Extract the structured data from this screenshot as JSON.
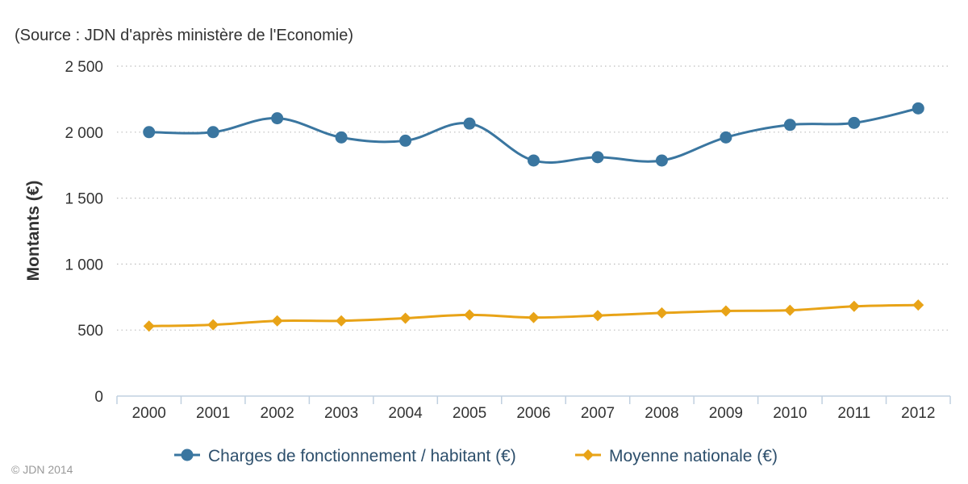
{
  "source_text": "(Source : JDN d'après ministère de l'Economie)",
  "credit": "© JDN 2014",
  "chart_data": {
    "type": "line",
    "title": "",
    "xlabel": "",
    "ylabel": "Montants (€)",
    "ylim": [
      0,
      2500
    ],
    "yticks": [
      0,
      500,
      1000,
      1500,
      2000,
      2500
    ],
    "ytick_labels": [
      "0",
      "500",
      "1 000",
      "1 500",
      "2 000",
      "2 500"
    ],
    "categories": [
      "2000",
      "2001",
      "2002",
      "2003",
      "2004",
      "2005",
      "2006",
      "2007",
      "2008",
      "2009",
      "2010",
      "2011",
      "2012"
    ],
    "grid": true,
    "legend_position": "bottom",
    "series": [
      {
        "name": "Charges de fonctionnement / habitant (€)",
        "color": "#3a76a0",
        "marker": "circle",
        "values": [
          2000,
          2000,
          2105,
          1960,
          1935,
          2065,
          1785,
          1810,
          1785,
          1960,
          2055,
          2070,
          2180
        ]
      },
      {
        "name": "Moyenne nationale (€)",
        "color": "#e8a317",
        "marker": "diamond",
        "values": [
          530,
          540,
          570,
          570,
          590,
          615,
          595,
          610,
          630,
          645,
          650,
          680,
          690
        ]
      }
    ]
  }
}
